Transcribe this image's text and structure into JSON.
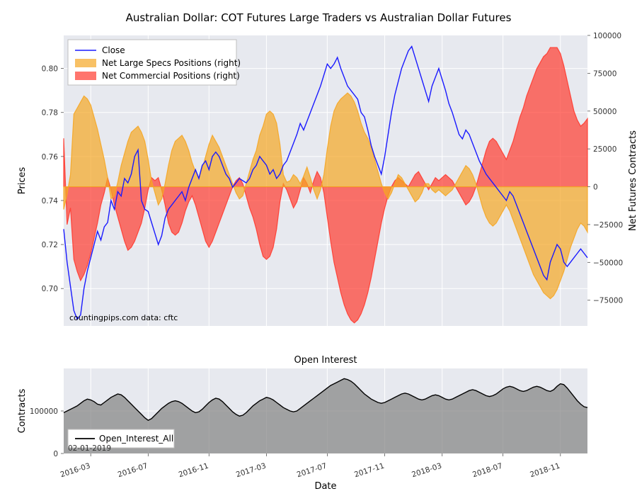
{
  "title": "Australian Dollar: COT Futures Large Traders vs Australian Dollar Futures",
  "attribution": "countingpips.com    data: cftc",
  "top": {
    "left_axis_label": "Prices",
    "right_axis_label": "Net Futures Contracts",
    "left_ticks": [
      0.7,
      0.72,
      0.74,
      0.76,
      0.78,
      0.8
    ],
    "left_ylim": [
      0.683,
      0.815
    ],
    "right_ticks": [
      -75000,
      -50000,
      -25000,
      0,
      25000,
      50000,
      75000,
      100000
    ],
    "right_ylim": [
      -92000,
      100000
    ],
    "plot_bg": "#e7e9ef",
    "grid_color": "#ffffff",
    "series": {
      "close": {
        "label": "Close",
        "color": "#1a1aff",
        "lw": 1.4,
        "values": [
          0.727,
          0.712,
          0.701,
          0.69,
          0.686,
          0.688,
          0.7,
          0.708,
          0.714,
          0.72,
          0.726,
          0.722,
          0.728,
          0.73,
          0.74,
          0.736,
          0.744,
          0.742,
          0.75,
          0.748,
          0.752,
          0.76,
          0.763,
          0.74,
          0.736,
          0.735,
          0.73,
          0.725,
          0.72,
          0.724,
          0.732,
          0.736,
          0.738,
          0.74,
          0.742,
          0.744,
          0.74,
          0.746,
          0.75,
          0.754,
          0.75,
          0.756,
          0.758,
          0.754,
          0.76,
          0.762,
          0.76,
          0.756,
          0.752,
          0.75,
          0.746,
          0.748,
          0.75,
          0.749,
          0.748,
          0.75,
          0.754,
          0.756,
          0.76,
          0.758,
          0.756,
          0.752,
          0.754,
          0.75,
          0.752,
          0.756,
          0.758,
          0.762,
          0.766,
          0.77,
          0.775,
          0.772,
          0.776,
          0.78,
          0.784,
          0.788,
          0.792,
          0.797,
          0.802,
          0.8,
          0.802,
          0.805,
          0.8,
          0.796,
          0.792,
          0.79,
          0.788,
          0.786,
          0.78,
          0.778,
          0.772,
          0.765,
          0.76,
          0.756,
          0.752,
          0.76,
          0.77,
          0.78,
          0.788,
          0.794,
          0.8,
          0.804,
          0.808,
          0.81,
          0.805,
          0.8,
          0.795,
          0.79,
          0.785,
          0.792,
          0.796,
          0.8,
          0.795,
          0.79,
          0.784,
          0.78,
          0.775,
          0.77,
          0.768,
          0.772,
          0.77,
          0.766,
          0.762,
          0.758,
          0.755,
          0.752,
          0.75,
          0.748,
          0.746,
          0.744,
          0.742,
          0.74,
          0.744,
          0.742,
          0.738,
          0.734,
          0.73,
          0.726,
          0.722,
          0.718,
          0.714,
          0.71,
          0.706,
          0.704,
          0.712,
          0.716,
          0.72,
          0.718,
          0.712,
          0.71,
          0.712,
          0.714,
          0.716,
          0.718,
          0.716,
          0.714
        ]
      },
      "specs": {
        "label": "Net Large Specs Positions (right)",
        "color": "#f5a623",
        "alpha": 0.7,
        "values": [
          -15000,
          -5000,
          8000,
          48000,
          52000,
          56000,
          60000,
          58000,
          54000,
          46000,
          38000,
          28000,
          18000,
          6000,
          -8000,
          -6000,
          3000,
          14000,
          22000,
          30000,
          36000,
          38000,
          40000,
          36000,
          30000,
          18000,
          4000,
          -4000,
          -12000,
          -8000,
          2000,
          14000,
          24000,
          30000,
          32000,
          34000,
          30000,
          24000,
          16000,
          10000,
          6000,
          12000,
          20000,
          28000,
          34000,
          30000,
          26000,
          20000,
          14000,
          8000,
          2000,
          -4000,
          -8000,
          -6000,
          2000,
          10000,
          18000,
          24000,
          34000,
          40000,
          48000,
          50000,
          48000,
          42000,
          28000,
          8000,
          3000,
          4000,
          8000,
          6000,
          2000,
          7000,
          13000,
          6000,
          -2000,
          -8000,
          -2000,
          8000,
          25000,
          40000,
          50000,
          55000,
          58000,
          60000,
          62000,
          60000,
          56000,
          50000,
          42000,
          36000,
          32000,
          26000,
          18000,
          10000,
          2000,
          -4000,
          -8000,
          -4000,
          2000,
          8000,
          6000,
          2000,
          -2000,
          -6000,
          -10000,
          -8000,
          -4000,
          2000,
          2000,
          -2000,
          -4000,
          -2000,
          -4000,
          -6000,
          -4000,
          -2000,
          2000,
          6000,
          10000,
          14000,
          12000,
          8000,
          2000,
          -6000,
          -14000,
          -20000,
          -24000,
          -26000,
          -24000,
          -20000,
          -16000,
          -12000,
          -16000,
          -22000,
          -28000,
          -34000,
          -40000,
          -46000,
          -52000,
          -58000,
          -62000,
          -66000,
          -70000,
          -72000,
          -74000,
          -72000,
          -68000,
          -62000,
          -56000,
          -48000,
          -40000,
          -34000,
          -28000,
          -24000,
          -26000,
          -30000
        ]
      },
      "comm": {
        "label": "Net Commercial Positions (right)",
        "color": "#ff3a2f",
        "alpha": 0.7,
        "values": [
          32000,
          -25000,
          -14000,
          -48000,
          -56000,
          -62000,
          -58000,
          -52000,
          -44000,
          -34000,
          -24000,
          -12000,
          -4000,
          6000,
          -2000,
          -12000,
          -20000,
          -28000,
          -36000,
          -42000,
          -40000,
          -36000,
          -30000,
          -24000,
          -14000,
          -2000,
          6000,
          4000,
          6000,
          -2000,
          -12000,
          -24000,
          -30000,
          -32000,
          -30000,
          -24000,
          -16000,
          -10000,
          -6000,
          -12000,
          -20000,
          -28000,
          -36000,
          -40000,
          -36000,
          -30000,
          -24000,
          -18000,
          -12000,
          -6000,
          0,
          4000,
          6000,
          2000,
          -6000,
          -14000,
          -20000,
          -28000,
          -38000,
          -46000,
          -48000,
          -46000,
          -40000,
          -28000,
          -10000,
          2000,
          -2000,
          -8000,
          -14000,
          -10000,
          -2000,
          6000,
          2000,
          -4000,
          4000,
          10000,
          6000,
          -4000,
          -20000,
          -36000,
          -50000,
          -60000,
          -70000,
          -78000,
          -84000,
          -88000,
          -90000,
          -88000,
          -84000,
          -78000,
          -70000,
          -60000,
          -48000,
          -36000,
          -24000,
          -14000,
          -6000,
          0,
          4000,
          6000,
          4000,
          2000,
          0,
          4000,
          8000,
          10000,
          6000,
          2000,
          -2000,
          2000,
          6000,
          4000,
          6000,
          8000,
          6000,
          4000,
          0,
          -4000,
          -8000,
          -12000,
          -10000,
          -6000,
          0,
          8000,
          16000,
          24000,
          30000,
          32000,
          30000,
          26000,
          22000,
          18000,
          24000,
          30000,
          38000,
          46000,
          52000,
          60000,
          66000,
          72000,
          78000,
          82000,
          86000,
          88000,
          92000,
          92000,
          92000,
          88000,
          80000,
          70000,
          60000,
          50000,
          44000,
          40000,
          42000,
          45000
        ]
      }
    },
    "legend_bg": "#ffffff",
    "legend_border": "#bfbfbf"
  },
  "bottom": {
    "title": "Open Interest",
    "axis_label": "Contracts",
    "plot_bg": "#e7e9ef",
    "grid_color": "#ffffff",
    "ylim": [
      0,
      200000
    ],
    "yticks": [
      0,
      100000
    ],
    "legend_label": "Open_Interest_All",
    "small_text": "02-01-2019",
    "series_color": "#828282",
    "line_color": "#000000",
    "values": [
      96000,
      100000,
      104000,
      108000,
      112000,
      118000,
      124000,
      128000,
      126000,
      122000,
      116000,
      114000,
      120000,
      126000,
      132000,
      136000,
      140000,
      138000,
      132000,
      124000,
      116000,
      108000,
      100000,
      92000,
      84000,
      78000,
      82000,
      90000,
      98000,
      106000,
      112000,
      118000,
      122000,
      124000,
      122000,
      118000,
      112000,
      106000,
      100000,
      96000,
      98000,
      104000,
      112000,
      120000,
      126000,
      130000,
      128000,
      122000,
      114000,
      106000,
      98000,
      92000,
      88000,
      90000,
      96000,
      104000,
      112000,
      118000,
      124000,
      128000,
      132000,
      130000,
      126000,
      120000,
      114000,
      108000,
      104000,
      100000,
      98000,
      100000,
      106000,
      112000,
      118000,
      124000,
      130000,
      136000,
      142000,
      148000,
      154000,
      160000,
      164000,
      168000,
      172000,
      176000,
      174000,
      170000,
      164000,
      156000,
      148000,
      140000,
      134000,
      128000,
      124000,
      120000,
      118000,
      120000,
      124000,
      128000,
      132000,
      136000,
      140000,
      142000,
      140000,
      136000,
      132000,
      128000,
      126000,
      128000,
      132000,
      136000,
      138000,
      136000,
      132000,
      128000,
      126000,
      128000,
      132000,
      136000,
      140000,
      144000,
      148000,
      150000,
      148000,
      144000,
      140000,
      136000,
      134000,
      136000,
      140000,
      146000,
      152000,
      156000,
      158000,
      156000,
      152000,
      148000,
      146000,
      148000,
      152000,
      156000,
      158000,
      156000,
      152000,
      148000,
      146000,
      150000,
      158000,
      164000,
      162000,
      154000,
      144000,
      134000,
      124000,
      116000,
      110000,
      108000
    ]
  },
  "x": {
    "label": "Date",
    "tick_labels": [
      "2016-03",
      "2016-07",
      "2016-11",
      "2017-03",
      "2017-07",
      "2017-11",
      "2018-03",
      "2018-07",
      "2018-11"
    ],
    "tick_idx": [
      8,
      25,
      43,
      60,
      78,
      95,
      112,
      130,
      147
    ],
    "n": 156
  }
}
